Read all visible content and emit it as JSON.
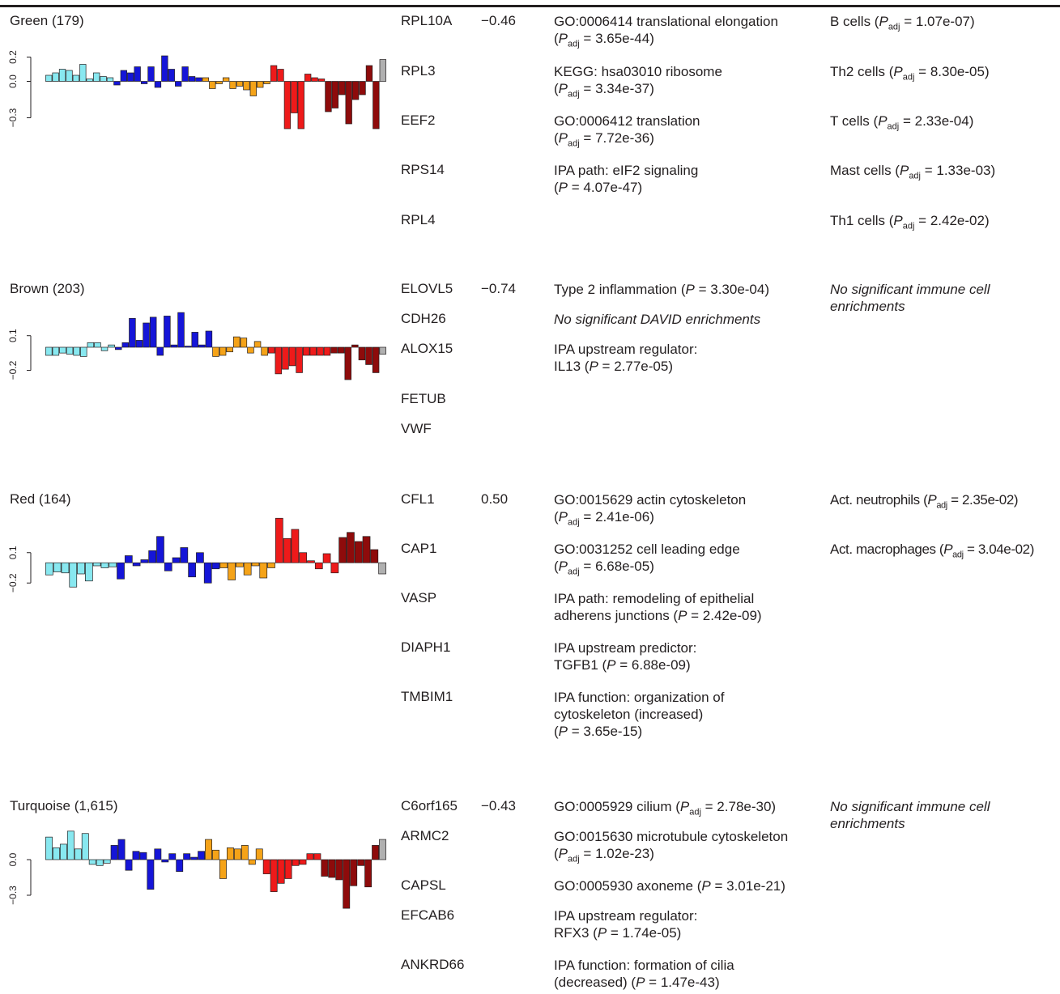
{
  "modules": [
    {
      "title": "Green (179)",
      "correlation": "−0.46",
      "yticks": [
        "0.2",
        "0.0",
        "−0.3"
      ],
      "genes": [
        "RPL10A",
        "RPL3",
        "EEF2",
        "RPS14",
        "RPL4"
      ],
      "enrich": [
        {
          "l1": "GO:0006414 translational elongation",
          "l2a": "(",
          "p": "P",
          "sub": "adj",
          "val": " = 3.65e-44)"
        },
        {
          "l1": "KEGG: hsa03010 ribosome",
          "l2a": "(",
          "p": "P",
          "sub": "adj",
          "val": " = 3.34e-37)"
        },
        {
          "l1": "GO:0006412 translation",
          "l2a": "(",
          "p": "P",
          "sub": "adj",
          "val": " = 7.72e-36)"
        },
        {
          "l1": "IPA path: eIF2 signaling",
          "l2a": "(",
          "p": "P",
          "sub": "",
          "val": " = 4.07e-47)"
        }
      ],
      "immune": [
        {
          "name": "B cells (",
          "p": "P",
          "sub": "adj",
          "val": " = 1.07e-07)"
        },
        {
          "name": "Th2 cells (",
          "p": "P",
          "sub": "adj",
          "val": " = 8.30e-05)"
        },
        {
          "name": "T cells (",
          "p": "P",
          "sub": "adj",
          "val": " = 2.33e-04)"
        },
        {
          "name": "Mast cells (",
          "p": "P",
          "sub": "adj",
          "val": " = 1.33e-03)"
        },
        {
          "name": "Th1 cells (",
          "p": "P",
          "sub": "adj",
          "val": " = 2.42e-02)"
        }
      ]
    },
    {
      "title": "Brown (203)",
      "correlation": "−0.74",
      "yticks": [
        "0.1",
        "−0.2"
      ],
      "genes": [
        "ELOVL5",
        "CDH26",
        "ALOX15",
        "FETUB",
        "VWF"
      ],
      "enrich": [
        {
          "pre": "Type 2 inflammation (",
          "p": "P",
          "val": " = 3.30e-04)"
        },
        {
          "italic": "No significant DAVID enrichments"
        },
        {
          "l1": "IPA upstream regulator:",
          "l2a": "IL13 (",
          "p": "P",
          "val": " = 2.77e-05)"
        }
      ],
      "immune_none": [
        "No significant immune cell",
        "enrichments"
      ]
    },
    {
      "title": "Red (164)",
      "correlation": "0.50",
      "yticks": [
        "0.1",
        "−0.2"
      ],
      "genes": [
        "CFL1",
        "CAP1",
        "VASP",
        "DIAPH1",
        "TMBIM1"
      ],
      "enrich": [
        {
          "l1": "GO:0015629 actin cytoskeleton",
          "l2a": "(",
          "p": "P",
          "sub": "adj",
          "val": " = 2.41e-06)"
        },
        {
          "l1": "GO:0031252 cell leading edge",
          "l2a": "(",
          "p": "P",
          "sub": "adj",
          "val": " = 6.68e-05)"
        },
        {
          "l1": "IPA path: remodeling of epithelial",
          "l2a": "adherens junctions (",
          "p": "P",
          "val": " = 2.42e-09)"
        },
        {
          "l1": "IPA upstream predictor:",
          "l2a": "TGFB1 (",
          "p": "P",
          "val": " = 6.88e-09)"
        },
        {
          "l1": "IPA function: organization of",
          "l2": "cytoskeleton (increased)",
          "l3a": "(",
          "p": "P",
          "val": " = 3.65e-15)"
        }
      ],
      "immune": [
        {
          "name": "Act. neutrophils (",
          "p": "P",
          "sub": "adj",
          "val": " = 2.35e-02)"
        },
        {
          "name": "Act. macrophages (",
          "p": "P",
          "sub": "adj",
          "val": " = 3.04e-02)"
        }
      ]
    },
    {
      "title": "Turquoise (1,615)",
      "correlation": "−0.43",
      "yticks": [
        "0.0",
        "−0.3"
      ],
      "genes": [
        "C6orf165",
        "ARMC2",
        "CAPSL",
        "EFCAB6",
        "ANKRD66"
      ],
      "enrich": [
        {
          "pre": "GO:0005929 cilium (",
          "p": "P",
          "sub": "adj",
          "val": " = 2.78e-30)"
        },
        {
          "l1": "GO:0015630 microtubule cytoskeleton",
          "l2a": "(",
          "p": "P",
          "sub": "adj",
          "val": " = 1.02e-23)"
        },
        {
          "pre": "GO:0005930 axoneme (",
          "p": "P",
          "val": " = 3.01e-21)"
        },
        {
          "l1": "IPA upstream regulator:",
          "l2a": "RFX3 (",
          "p": "P",
          "val": " = 1.74e-05)"
        },
        {
          "l1": "IPA function: formation of cilia",
          "l2a": "(decreased) (",
          "p": "P",
          "val": " = 1.47e-43)"
        }
      ],
      "immune_none": [
        "No significant immune cell",
        "enrichments"
      ]
    }
  ],
  "colors": {
    "text": "#231f20",
    "groups": [
      "#88e8f0",
      "#1515d8",
      "#f5a318",
      "#ee1a1a",
      "#8e0b0b",
      "#b0b0b0"
    ]
  },
  "chart_data": [
    {
      "type": "bar",
      "module": "Green (179)",
      "yticks": [
        0.2,
        0.0,
        -0.3
      ],
      "ylim": [
        -0.45,
        0.35
      ],
      "groups": [
        {
          "color": "#88e8f0",
          "values": [
            0.05,
            0.07,
            0.1,
            0.09,
            0.05,
            0.14,
            0.02,
            0.07,
            0.04,
            0.03
          ]
        },
        {
          "color": "#1515d8",
          "values": [
            -0.03,
            0.09,
            0.07,
            0.12,
            -0.02,
            0.12,
            -0.05,
            0.21,
            0.1,
            -0.04,
            0.12,
            0.04,
            0.03
          ]
        },
        {
          "color": "#f5a318",
          "values": [
            0.03,
            -0.06,
            -0.02,
            0.03,
            -0.06,
            -0.04,
            -0.07,
            -0.12,
            -0.05,
            -0.02
          ]
        },
        {
          "color": "#ee1a1a",
          "values": [
            0.13,
            0.1,
            -0.39,
            -0.26,
            -0.39,
            0.06,
            0.03,
            0.02
          ]
        },
        {
          "color": "#8e0b0b",
          "values": [
            -0.25,
            -0.22,
            -0.11,
            -0.35,
            -0.15,
            -0.11,
            0.13,
            -0.39
          ]
        },
        {
          "color": "#b0b0b0",
          "values": [
            0.18
          ]
        }
      ]
    },
    {
      "type": "bar",
      "module": "Brown (203)",
      "yticks": [
        0.1,
        -0.2
      ],
      "ylim": [
        -0.35,
        0.35
      ],
      "groups": [
        {
          "color": "#88e8f0",
          "values": [
            -0.07,
            -0.07,
            -0.05,
            -0.06,
            -0.07,
            -0.08,
            0.04,
            0.04,
            -0.03,
            0.02
          ]
        },
        {
          "color": "#1515d8",
          "values": [
            -0.02,
            0.04,
            0.25,
            0.06,
            0.21,
            0.26,
            -0.07,
            0.27,
            0.02,
            0.3,
            0.01,
            0.13,
            0.02,
            0.14
          ]
        },
        {
          "color": "#f5a318",
          "values": [
            -0.08,
            -0.07,
            -0.04,
            0.09,
            0.08,
            -0.05,
            0.05,
            -0.07
          ]
        },
        {
          "color": "#ee1a1a",
          "values": [
            -0.05,
            -0.23,
            -0.19,
            -0.16,
            -0.22,
            -0.07,
            -0.07,
            -0.07,
            -0.07
          ]
        },
        {
          "color": "#8e0b0b",
          "values": [
            -0.05,
            -0.05,
            -0.28,
            0.02,
            -0.11,
            -0.15,
            -0.22
          ]
        },
        {
          "color": "#b0b0b0",
          "values": [
            -0.06
          ]
        }
      ]
    },
    {
      "type": "bar",
      "module": "Red (164)",
      "yticks": [
        0.1,
        -0.2
      ],
      "ylim": [
        -0.35,
        0.45
      ],
      "groups": [
        {
          "color": "#88e8f0",
          "values": [
            -0.12,
            -0.09,
            -0.1,
            -0.24,
            -0.11,
            -0.18,
            -0.03,
            -0.05,
            -0.04
          ]
        },
        {
          "color": "#1515d8",
          "values": [
            -0.16,
            0.07,
            -0.03,
            0.03,
            0.12,
            0.26,
            -0.08,
            0.05,
            0.15,
            -0.14,
            0.1,
            -0.2,
            -0.06
          ]
        },
        {
          "color": "#f5a318",
          "values": [
            -0.05,
            -0.17,
            -0.04,
            -0.12,
            -0.03,
            -0.15,
            -0.05
          ]
        },
        {
          "color": "#ee1a1a",
          "values": [
            0.44,
            0.24,
            0.33,
            0.1,
            0.02,
            -0.06,
            0.09,
            -0.1
          ]
        },
        {
          "color": "#8e0b0b",
          "values": [
            0.25,
            0.3,
            0.21,
            0.26,
            0.13
          ]
        },
        {
          "color": "#b0b0b0",
          "values": [
            -0.11
          ]
        }
      ]
    },
    {
      "type": "bar",
      "module": "Turquoise (1,615)",
      "yticks": [
        0.0,
        -0.3
      ],
      "ylim": [
        -0.45,
        0.3
      ],
      "groups": [
        {
          "color": "#88e8f0",
          "values": [
            0.19,
            0.1,
            0.13,
            0.24,
            0.09,
            0.22,
            -0.04,
            -0.05,
            -0.03
          ]
        },
        {
          "color": "#1515d8",
          "values": [
            0.12,
            0.17,
            -0.09,
            0.07,
            0.06,
            -0.25,
            0.09,
            -0.02,
            0.05,
            -0.1,
            0.05,
            0.02,
            0.07
          ]
        },
        {
          "color": "#f5a318",
          "values": [
            0.17,
            0.08,
            -0.16,
            0.1,
            0.09,
            0.12,
            -0.04,
            0.09
          ]
        },
        {
          "color": "#ee1a1a",
          "values": [
            -0.12,
            -0.27,
            -0.2,
            -0.16,
            -0.05,
            -0.04,
            0.05,
            0.05
          ]
        },
        {
          "color": "#8e0b0b",
          "values": [
            -0.14,
            -0.15,
            -0.17,
            -0.41,
            -0.22,
            -0.05,
            -0.23,
            0.12
          ]
        },
        {
          "color": "#b0b0b0",
          "values": [
            0.17
          ]
        }
      ]
    }
  ]
}
